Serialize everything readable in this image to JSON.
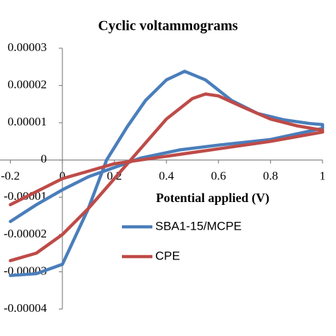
{
  "chart_data": {
    "type": "line",
    "title": "Cyclic voltammograms",
    "x_label": "Potential applied (V)",
    "xlim": [
      -0.2,
      1
    ],
    "xticks": [
      -0.2,
      0,
      0.2,
      0.4,
      0.6,
      0.8,
      1
    ],
    "ylim": [
      -4e-05,
      3e-05
    ],
    "yticks": [
      -4e-05,
      -3e-05,
      -2e-05,
      -1e-05,
      0,
      1e-05,
      2e-05,
      3e-05
    ],
    "grid": false,
    "legend": "right",
    "series": [
      {
        "name": "SBA1-15/MCPE",
        "color": "#4a7ebb",
        "x": [
          -0.2,
          -0.1,
          0,
          0.1,
          0.17,
          0.25,
          0.32,
          0.4,
          0.47,
          0.55,
          0.65,
          0.75,
          0.85,
          0.95,
          1,
          1,
          0.8,
          0.6,
          0.45,
          0.3,
          0.2,
          0.1,
          0,
          -0.1,
          -0.2
        ],
        "values": [
          -3.1e-05,
          -3.05e-05,
          -2.8e-05,
          -1.3e-05,
          0,
          9e-06,
          1.6e-05,
          2.15e-05,
          2.38e-05,
          2.15e-05,
          1.6e-05,
          1.25e-05,
          1.08e-05,
          9.8e-06,
          9.5e-06,
          8.5e-06,
          5.5e-06,
          4e-06,
          2.7e-06,
          5e-07,
          -2e-06,
          -4.5e-06,
          -8e-06,
          -1.2e-05,
          -1.65e-05
        ]
      },
      {
        "name": "CPE",
        "color": "#be4b48",
        "x": [
          -0.2,
          -0.1,
          0,
          0.1,
          0.2,
          0.3,
          0.4,
          0.5,
          0.55,
          0.6,
          0.7,
          0.8,
          0.9,
          1,
          1,
          0.8,
          0.6,
          0.4,
          0.3,
          0.2,
          0.1,
          0,
          -0.1,
          -0.2
        ],
        "values": [
          -2.7e-05,
          -2.5e-05,
          -2e-05,
          -1.3e-05,
          -5e-06,
          3e-06,
          1.1e-05,
          1.65e-05,
          1.77e-05,
          1.72e-05,
          1.4e-05,
          1.1e-05,
          9.2e-06,
          8e-06,
          7.5e-06,
          5e-06,
          3e-06,
          1e-06,
          0,
          -1e-06,
          -3e-06,
          -5e-06,
          -8.5e-06,
          -1.2e-05
        ]
      }
    ]
  }
}
